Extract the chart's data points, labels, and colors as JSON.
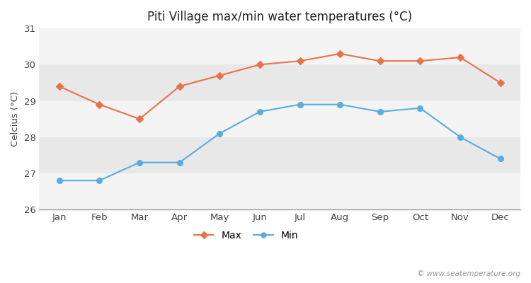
{
  "title": "Piti Village max/min water temperatures (°C)",
  "ylabel": "Celcius (°C)",
  "months": [
    "Jan",
    "Feb",
    "Mar",
    "Apr",
    "May",
    "Jun",
    "Jul",
    "Aug",
    "Sep",
    "Oct",
    "Nov",
    "Dec"
  ],
  "max_temps": [
    29.4,
    28.9,
    28.5,
    29.4,
    29.7,
    30.0,
    30.1,
    30.3,
    30.1,
    30.1,
    30.2,
    29.5
  ],
  "min_temps": [
    26.8,
    26.8,
    27.3,
    27.3,
    28.1,
    28.7,
    28.9,
    28.9,
    28.7,
    28.8,
    28.0,
    27.4
  ],
  "max_color": "#e8734a",
  "min_color": "#5aace0",
  "fig_bg": "#ffffff",
  "band_light": "#f4f4f4",
  "band_dark": "#e8e8e8",
  "ylim": [
    26,
    31
  ],
  "yticks": [
    26,
    27,
    28,
    29,
    30,
    31
  ],
  "watermark": "© www.seatemperature.org",
  "legend_max": "Max",
  "legend_min": "Min"
}
